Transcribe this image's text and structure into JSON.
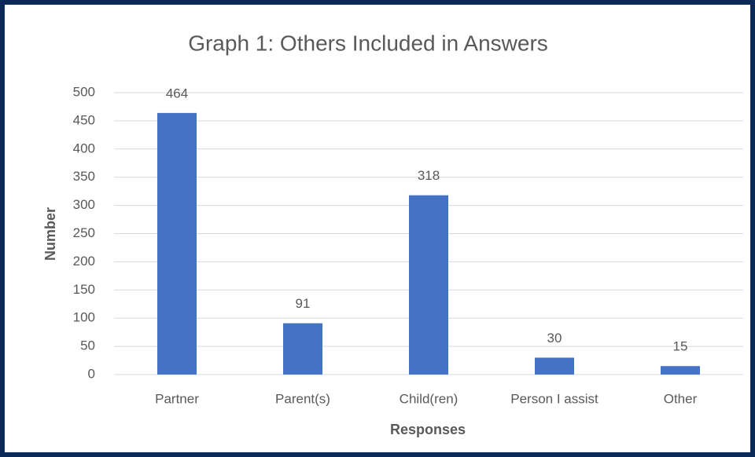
{
  "chart_data": {
    "type": "bar",
    "title": "Graph 1: Others Included in Answers",
    "x_label": "Responses",
    "y_label": "Number",
    "categories": [
      "Partner",
      "Parent(s)",
      "Child(ren)",
      "Person I assist",
      "Other"
    ],
    "values": [
      464,
      91,
      318,
      30,
      15
    ],
    "color": "#4472c4",
    "ylim": [
      0,
      500
    ],
    "yticks": [
      0,
      50,
      100,
      150,
      200,
      250,
      300,
      350,
      400,
      450,
      500
    ],
    "grid": true
  }
}
